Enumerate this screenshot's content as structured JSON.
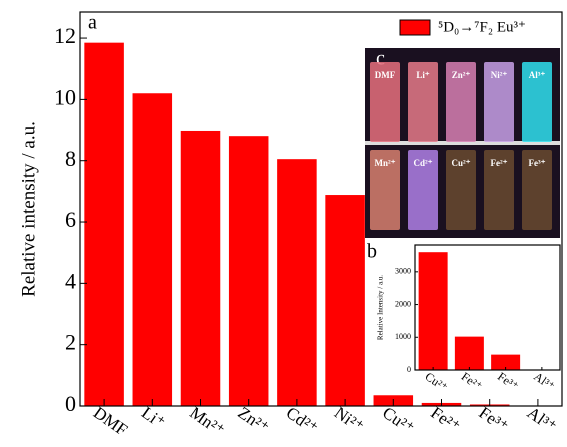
{
  "chart_data": [
    {
      "type": "bar",
      "panel_label": "a",
      "ylabel": "Relative intensity / a.u.",
      "categories": [
        "DMF",
        "Li⁺",
        "Mn²⁺",
        "Zn²⁺",
        "Cd²⁺",
        "Ni²⁺",
        "Cu²⁺",
        "Fe²⁺",
        "Fe³⁺",
        "Al³⁺"
      ],
      "series": [
        {
          "name": "⁵D₀→⁷F₂ Eu³⁺",
          "color": "#ff0000",
          "values": [
            11.85,
            10.2,
            8.97,
            8.8,
            8.05,
            6.88,
            0.35,
            0.1,
            0.05,
            0
          ]
        }
      ],
      "ylim": [
        0,
        12.85
      ],
      "yticks": [
        0,
        2,
        4,
        6,
        8,
        10,
        12
      ],
      "legend": "top-right"
    },
    {
      "type": "bar",
      "panel_label": "b",
      "ylabel": "Relative Intensity / a.u.",
      "categories": [
        "Cu²⁺",
        "Fe²⁺",
        "Fe³⁺",
        "Al³⁺"
      ],
      "series": [
        {
          "name": null,
          "color": "#ff0000",
          "values": [
            3600,
            1020,
            470,
            0
          ]
        }
      ],
      "ylim": [
        0,
        3820
      ],
      "yticks": [
        0,
        1000,
        2000,
        3000
      ]
    }
  ],
  "photo": {
    "label": "c",
    "top_row": [
      "DMF",
      "Li⁺",
      "Zn²⁺",
      "Ni²⁺",
      "Al³⁺"
    ],
    "bottom_row": [
      "Mn²⁺",
      "Cd²⁺",
      "Cu²⁺",
      "Fe²⁺",
      "Fe³⁺"
    ]
  }
}
